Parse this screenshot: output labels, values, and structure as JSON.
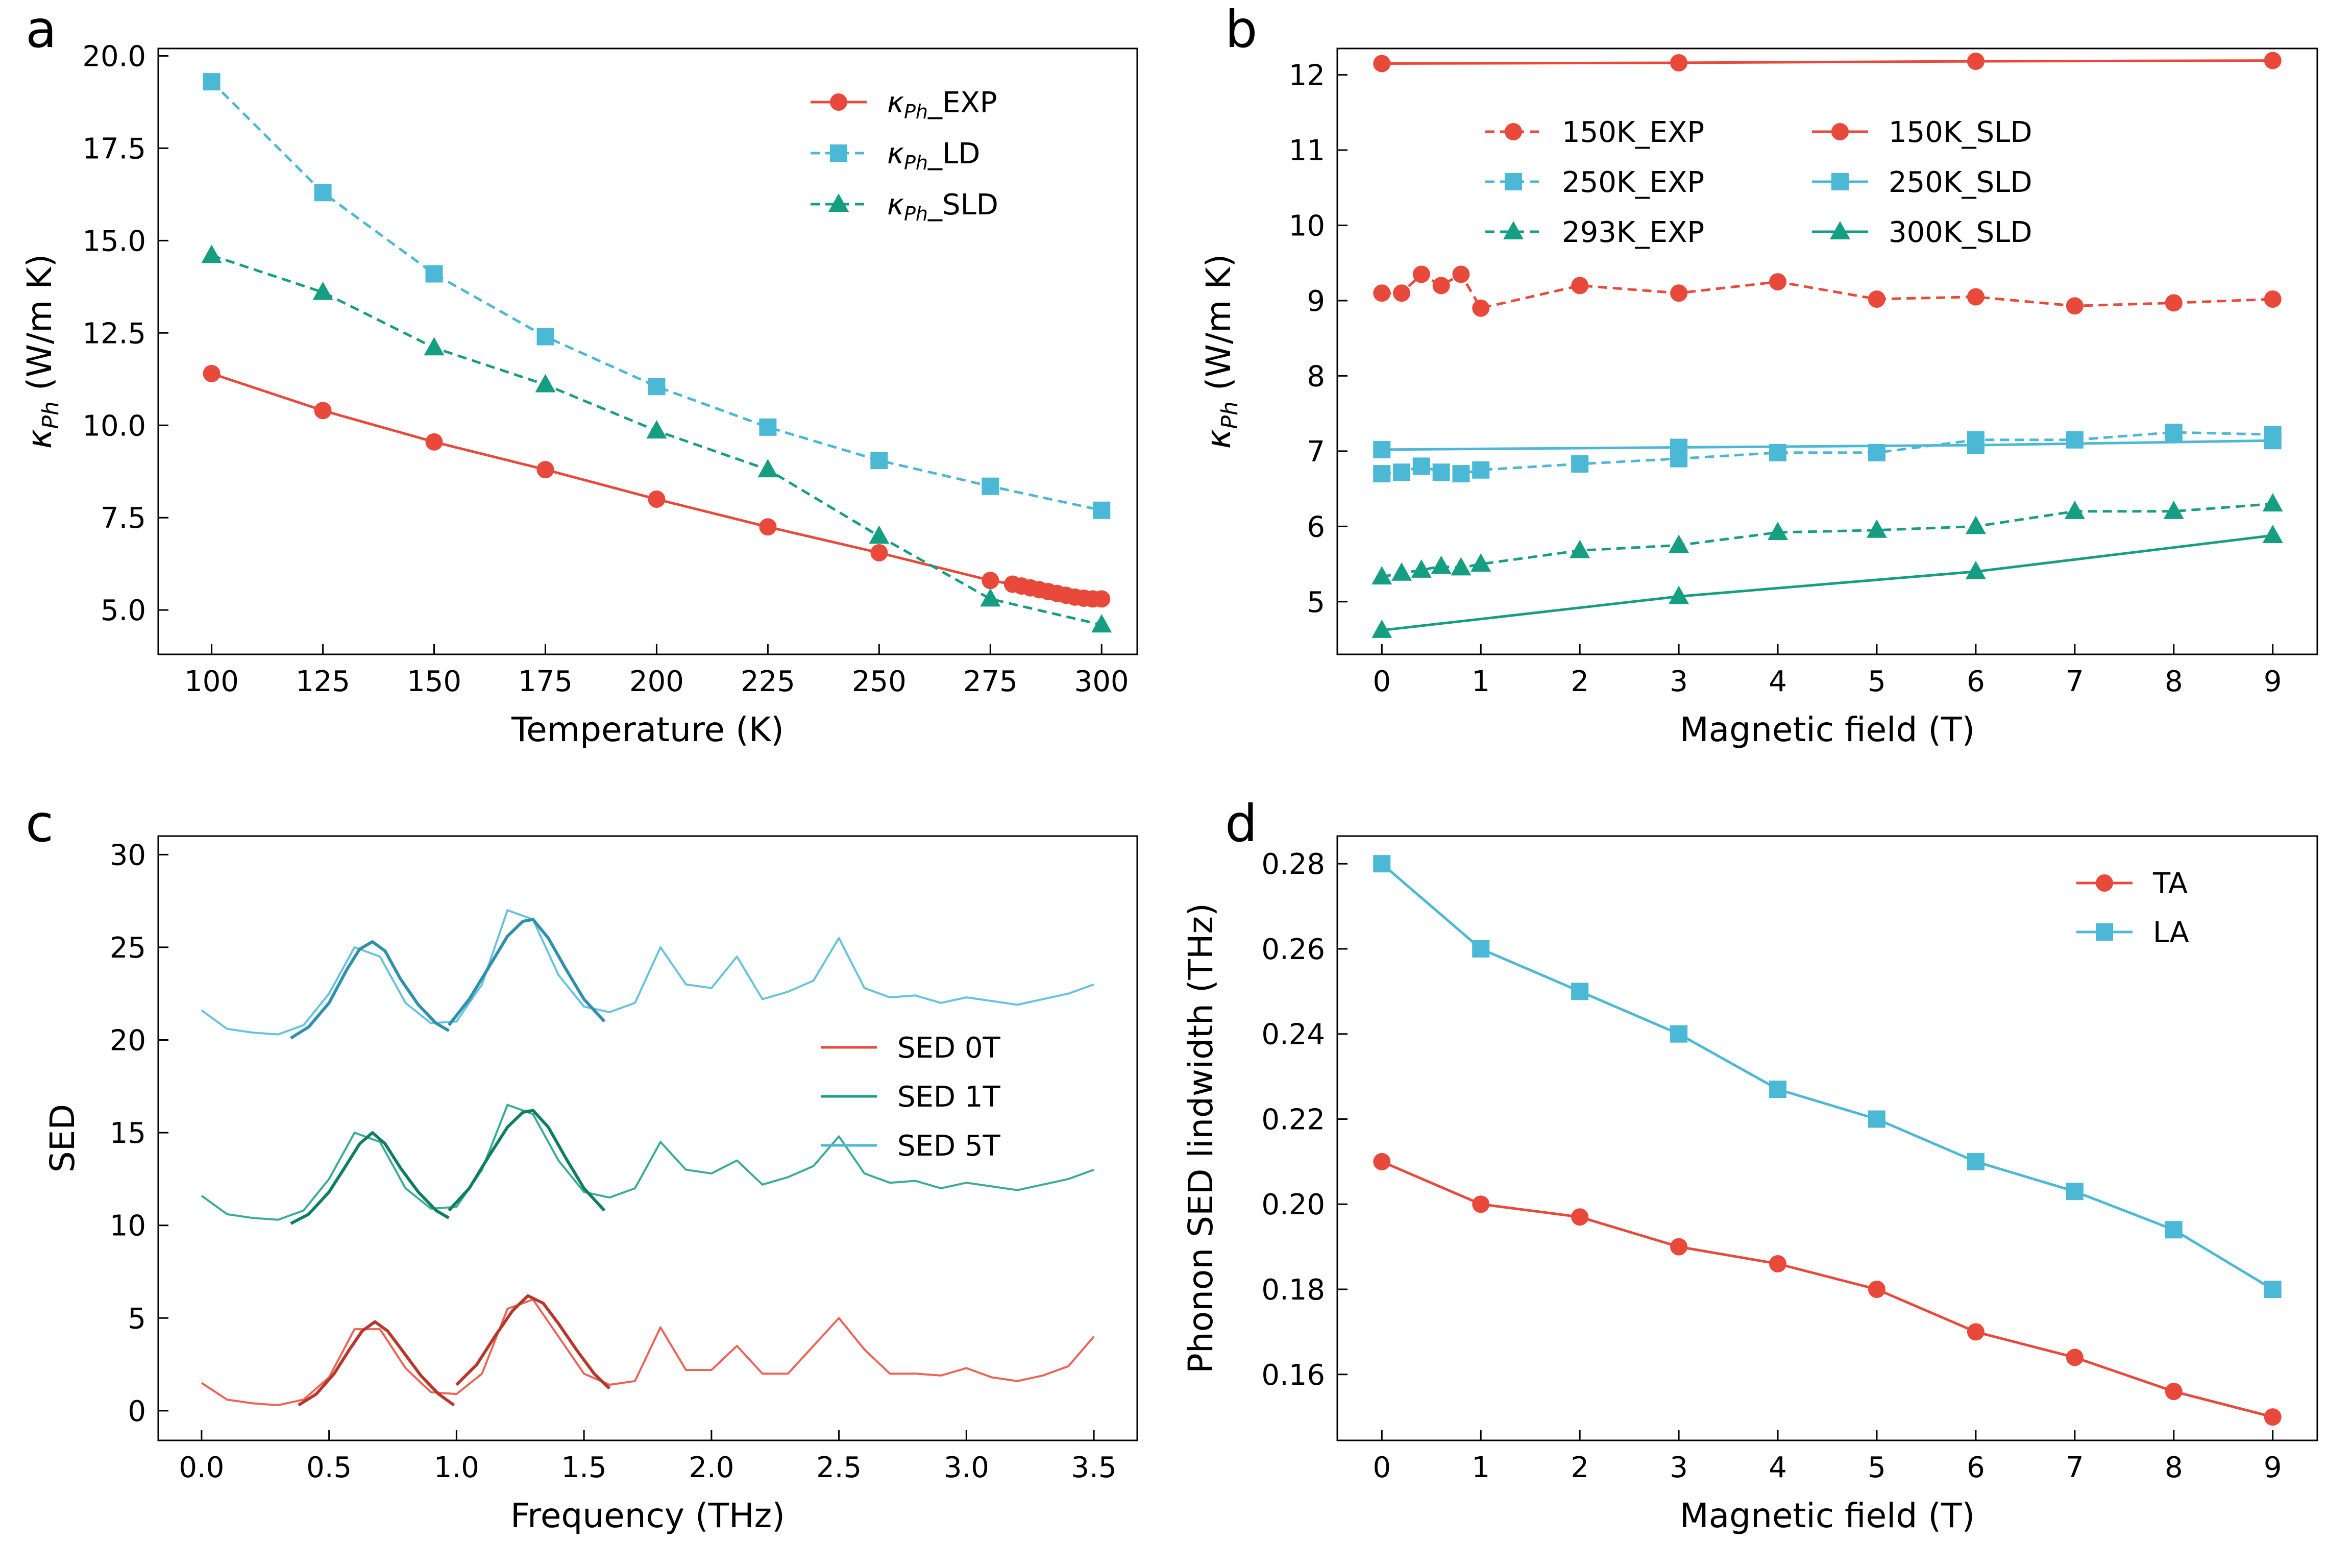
{
  "figure": {
    "colors": {
      "red": "#e8493a",
      "blue": "#4bb8d6",
      "green": "#169e83",
      "dark_red": "#b7372c",
      "dark_green": "#0f7d66",
      "dark_blue": "#2f8fae"
    }
  },
  "chart_data": [
    {
      "panel": "a",
      "type": "line",
      "xlabel": "Temperature (K)",
      "ylabel": "κPh (W/m K)",
      "xlim": [
        88,
        308
      ],
      "ylim": [
        3.8,
        20.2
      ],
      "xticks": [
        100,
        125,
        150,
        175,
        200,
        225,
        250,
        275,
        300
      ],
      "yticks": [
        5.0,
        7.5,
        10.0,
        12.5,
        15.0,
        17.5,
        20.0
      ],
      "ytick_labels": [
        "5.0",
        "7.5",
        "10.0",
        "12.5",
        "15.0",
        "17.5",
        "20.0"
      ],
      "legend_position": "top-right",
      "series": [
        {
          "name": "κPh_EXP",
          "legend_symbol": "κ",
          "legend_sub": "Ph",
          "legend_suffix": "_EXP",
          "color": "#e8493a",
          "marker": "circle",
          "dash": "solid",
          "x": [
            100,
            125,
            150,
            175,
            200,
            225,
            250,
            275,
            280,
            282,
            284,
            286,
            288,
            290,
            292,
            294,
            296,
            298,
            300
          ],
          "y": [
            11.4,
            10.4,
            9.55,
            8.8,
            8.0,
            7.25,
            6.55,
            5.8,
            5.7,
            5.65,
            5.6,
            5.55,
            5.5,
            5.45,
            5.4,
            5.35,
            5.32,
            5.3,
            5.3
          ]
        },
        {
          "name": "κPh_LD",
          "legend_symbol": "κ",
          "legend_sub": "Ph",
          "legend_suffix": "_LD",
          "color": "#4bb8d6",
          "marker": "square",
          "dash": "dashed",
          "x": [
            100,
            125,
            150,
            175,
            200,
            225,
            250,
            275,
            300
          ],
          "y": [
            19.3,
            16.3,
            14.1,
            12.4,
            11.05,
            9.95,
            9.05,
            8.35,
            7.7
          ]
        },
        {
          "name": "κPh_SLD",
          "legend_symbol": "κ",
          "legend_sub": "Ph",
          "legend_suffix": "_SLD",
          "color": "#169e83",
          "marker": "triangle",
          "dash": "dashed",
          "x": [
            100,
            125,
            150,
            175,
            200,
            225,
            250,
            275,
            300
          ],
          "y": [
            14.6,
            13.6,
            12.1,
            11.1,
            9.85,
            8.8,
            7.0,
            5.3,
            4.6
          ]
        }
      ]
    },
    {
      "panel": "b",
      "type": "line",
      "xlabel": "Magnetic field (T)",
      "ylabel": "κPh (W/m K)",
      "xlim": [
        -0.45,
        9.45
      ],
      "ylim": [
        4.3,
        12.35
      ],
      "xticks": [
        0,
        1,
        2,
        3,
        4,
        5,
        6,
        7,
        8,
        9
      ],
      "yticks": [
        5,
        6,
        7,
        8,
        9,
        10,
        11,
        12
      ],
      "ytick_labels": [
        "5",
        "6",
        "7",
        "8",
        "9",
        "10",
        "11",
        "12"
      ],
      "legend_position": "top-center",
      "legend_columns": 2,
      "series": [
        {
          "name": "150K_EXP",
          "color": "#e8493a",
          "marker": "circle",
          "dash": "dashed",
          "x": [
            0,
            0.2,
            0.4,
            0.6,
            0.8,
            1,
            2,
            3,
            4,
            5,
            6,
            7,
            8,
            9
          ],
          "y": [
            9.1,
            9.1,
            9.35,
            9.2,
            9.35,
            8.9,
            9.2,
            9.1,
            9.25,
            9.02,
            9.05,
            8.93,
            8.97,
            9.02
          ]
        },
        {
          "name": "250K_EXP",
          "color": "#4bb8d6",
          "marker": "square",
          "dash": "dashed",
          "x": [
            0,
            0.2,
            0.4,
            0.6,
            0.8,
            1,
            2,
            3,
            4,
            5,
            6,
            7,
            8,
            9
          ],
          "y": [
            6.7,
            6.72,
            6.8,
            6.72,
            6.7,
            6.75,
            6.83,
            6.9,
            6.98,
            6.98,
            7.15,
            7.15,
            7.25,
            7.22
          ]
        },
        {
          "name": "293K_EXP",
          "color": "#169e83",
          "marker": "triangle",
          "dash": "dashed",
          "x": [
            0,
            0.2,
            0.4,
            0.6,
            0.8,
            1,
            2,
            3,
            4,
            5,
            6,
            7,
            8,
            9
          ],
          "y": [
            5.33,
            5.38,
            5.42,
            5.47,
            5.45,
            5.5,
            5.68,
            5.75,
            5.92,
            5.95,
            6.0,
            6.2,
            6.2,
            6.3
          ]
        },
        {
          "name": "150K_SLD",
          "color": "#e8493a",
          "marker": "circle",
          "dash": "solid",
          "x": [
            0,
            3,
            6,
            9
          ],
          "y": [
            12.15,
            12.16,
            12.18,
            12.19
          ]
        },
        {
          "name": "250K_SLD",
          "color": "#4bb8d6",
          "marker": "square",
          "dash": "solid",
          "x": [
            0,
            3,
            6,
            9
          ],
          "y": [
            7.02,
            7.05,
            7.08,
            7.14
          ]
        },
        {
          "name": "300K_SLD",
          "color": "#169e83",
          "marker": "triangle",
          "dash": "solid",
          "x": [
            0,
            3,
            6,
            9
          ],
          "y": [
            4.62,
            5.07,
            5.4,
            5.88
          ]
        }
      ]
    },
    {
      "panel": "c",
      "type": "line",
      "xlabel": "Frequency (THz)",
      "ylabel": "SED",
      "xlim": [
        -0.17,
        3.67
      ],
      "ylim": [
        -1.6,
        31.0
      ],
      "xticks": [
        0.0,
        0.5,
        1.0,
        1.5,
        2.0,
        2.5,
        3.0,
        3.5
      ],
      "xtick_labels": [
        "0.0",
        "0.5",
        "1.0",
        "1.5",
        "2.0",
        "2.5",
        "3.0",
        "3.5"
      ],
      "yticks": [
        0,
        5,
        10,
        15,
        20,
        25,
        30
      ],
      "ytick_labels": [
        "0",
        "5",
        "10",
        "15",
        "20",
        "25",
        "30"
      ],
      "legend_position": "center-right",
      "series": [
        {
          "name": "SED 0T",
          "color": "#e8493a",
          "offset": 0,
          "x": [
            0.0,
            0.1,
            0.2,
            0.3,
            0.4,
            0.5,
            0.6,
            0.7,
            0.8,
            0.9,
            1.0,
            1.1,
            1.2,
            1.3,
            1.4,
            1.5,
            1.6,
            1.7,
            1.8,
            1.9,
            2.0,
            2.1,
            2.2,
            2.3,
            2.4,
            2.5,
            2.6,
            2.7,
            2.8,
            2.9,
            3.0,
            3.1,
            3.2,
            3.3,
            3.4,
            3.5
          ],
          "y": [
            1.5,
            0.6,
            0.4,
            0.3,
            0.6,
            1.8,
            4.4,
            4.4,
            2.3,
            1.0,
            0.9,
            2.0,
            5.5,
            6.0,
            4.0,
            2.0,
            1.4,
            1.6,
            4.5,
            2.2,
            2.2,
            3.5,
            2.0,
            2.0,
            3.5,
            5.0,
            3.3,
            2.0,
            2.0,
            1.9,
            2.3,
            1.8,
            1.6,
            1.9,
            2.4,
            4.0
          ],
          "fits": [
            {
              "x": [
                0.38,
                0.45,
                0.52,
                0.58,
                0.63,
                0.68,
                0.73,
                0.79,
                0.86,
                0.93,
                0.99
              ],
              "y": [
                0.3,
                0.9,
                2.0,
                3.3,
                4.3,
                4.8,
                4.3,
                3.2,
                1.9,
                0.9,
                0.3
              ]
            },
            {
              "x": [
                1.0,
                1.08,
                1.15,
                1.22,
                1.28,
                1.34,
                1.4,
                1.47,
                1.54,
                1.6
              ],
              "y": [
                1.4,
                2.5,
                4.0,
                5.4,
                6.2,
                5.8,
                4.7,
                3.3,
                2.0,
                1.2
              ]
            }
          ]
        },
        {
          "name": "SED 1T",
          "color": "#169e83",
          "offset": 10,
          "x": [
            0.0,
            0.1,
            0.2,
            0.3,
            0.4,
            0.5,
            0.6,
            0.7,
            0.8,
            0.9,
            1.0,
            1.1,
            1.2,
            1.3,
            1.4,
            1.5,
            1.6,
            1.7,
            1.8,
            1.9,
            2.0,
            2.1,
            2.2,
            2.3,
            2.4,
            2.5,
            2.6,
            2.7,
            2.8,
            2.9,
            3.0,
            3.1,
            3.2,
            3.3,
            3.4,
            3.5
          ],
          "y": [
            11.6,
            10.6,
            10.4,
            10.3,
            10.8,
            12.5,
            15.0,
            14.5,
            12.0,
            10.9,
            11.0,
            13.0,
            16.5,
            16.0,
            13.5,
            11.8,
            11.5,
            12.0,
            14.5,
            13.0,
            12.8,
            13.5,
            12.2,
            12.6,
            13.2,
            14.8,
            12.8,
            12.3,
            12.4,
            12.0,
            12.3,
            12.1,
            11.9,
            12.2,
            12.5,
            13.0
          ],
          "fits": [
            {
              "x": [
                0.35,
                0.42,
                0.5,
                0.57,
                0.62,
                0.67,
                0.72,
                0.78,
                0.85,
                0.92,
                0.97
              ],
              "y": [
                10.1,
                10.6,
                11.8,
                13.3,
                14.4,
                15.0,
                14.4,
                13.1,
                11.8,
                10.8,
                10.4
              ]
            },
            {
              "x": [
                0.97,
                1.05,
                1.13,
                1.2,
                1.26,
                1.3,
                1.36,
                1.43,
                1.5,
                1.58
              ],
              "y": [
                10.8,
                12.0,
                13.8,
                15.3,
                16.1,
                16.2,
                15.3,
                13.6,
                12.0,
                10.8
              ]
            }
          ]
        },
        {
          "name": "SED 5T",
          "color": "#4bb8d6",
          "offset": 20,
          "x": [
            0.0,
            0.1,
            0.2,
            0.3,
            0.4,
            0.5,
            0.6,
            0.7,
            0.8,
            0.9,
            1.0,
            1.1,
            1.2,
            1.3,
            1.4,
            1.5,
            1.6,
            1.7,
            1.8,
            1.9,
            2.0,
            2.1,
            2.2,
            2.3,
            2.4,
            2.5,
            2.6,
            2.7,
            2.8,
            2.9,
            3.0,
            3.1,
            3.2,
            3.3,
            3.4,
            3.5
          ],
          "y": [
            21.6,
            20.6,
            20.4,
            20.3,
            20.8,
            22.5,
            25.0,
            24.5,
            22.0,
            20.9,
            21.0,
            23.0,
            27.0,
            26.5,
            23.5,
            21.8,
            21.5,
            22.0,
            25.0,
            23.0,
            22.8,
            24.5,
            22.2,
            22.6,
            23.2,
            25.5,
            22.8,
            22.3,
            22.4,
            22.0,
            22.3,
            22.1,
            21.9,
            22.2,
            22.5,
            23.0
          ],
          "fits": [
            {
              "x": [
                0.35,
                0.42,
                0.5,
                0.57,
                0.62,
                0.67,
                0.72,
                0.78,
                0.85,
                0.92,
                0.97
              ],
              "y": [
                20.1,
                20.7,
                22.0,
                23.8,
                24.9,
                25.3,
                24.8,
                23.3,
                21.9,
                20.9,
                20.5
              ]
            },
            {
              "x": [
                0.97,
                1.05,
                1.13,
                1.2,
                1.26,
                1.3,
                1.36,
                1.43,
                1.5,
                1.58
              ],
              "y": [
                20.8,
                22.2,
                24.0,
                25.6,
                26.4,
                26.5,
                25.5,
                23.8,
                22.2,
                21.0
              ]
            }
          ]
        }
      ]
    },
    {
      "panel": "d",
      "type": "line",
      "xlabel": "Magnetic field (T)",
      "ylabel": "Phonon SED lindwidth (THz)",
      "xlim": [
        -0.45,
        9.45
      ],
      "ylim": [
        0.1445,
        0.2865
      ],
      "xticks": [
        0,
        1,
        2,
        3,
        4,
        5,
        6,
        7,
        8,
        9
      ],
      "yticks": [
        0.16,
        0.18,
        0.2,
        0.22,
        0.24,
        0.26,
        0.28
      ],
      "ytick_labels": [
        "0.16",
        "0.18",
        "0.20",
        "0.22",
        "0.24",
        "0.26",
        "0.28"
      ],
      "legend_position": "top-right",
      "series": [
        {
          "name": "TA",
          "color": "#e8493a",
          "marker": "circle",
          "dash": "solid",
          "x": [
            0,
            1,
            2,
            3,
            4,
            5,
            6,
            7,
            8,
            9
          ],
          "y": [
            0.21,
            0.2,
            0.197,
            0.19,
            0.186,
            0.18,
            0.17,
            0.164,
            0.156,
            0.15
          ]
        },
        {
          "name": "LA",
          "color": "#4bb8d6",
          "marker": "square",
          "dash": "solid",
          "x": [
            0,
            1,
            2,
            3,
            4,
            5,
            6,
            7,
            8,
            9
          ],
          "y": [
            0.28,
            0.26,
            0.25,
            0.24,
            0.227,
            0.22,
            0.21,
            0.203,
            0.194,
            0.18
          ]
        }
      ]
    }
  ]
}
